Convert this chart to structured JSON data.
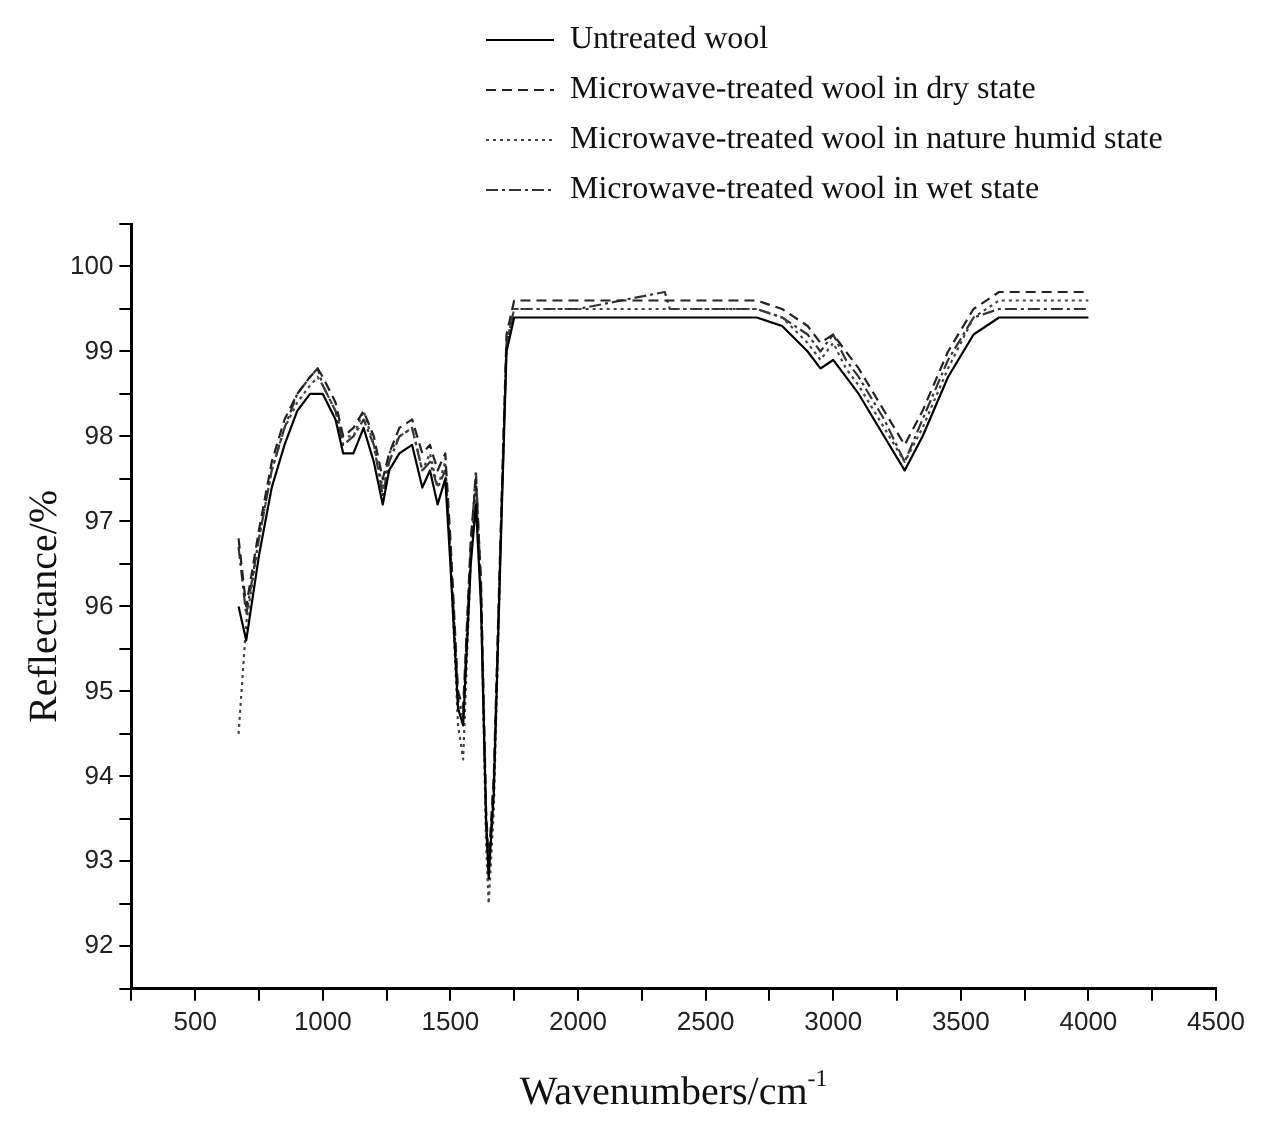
{
  "chart_data": {
    "type": "line",
    "xlabel": "Wavenumbers/cm$^{-1}$",
    "ylabel": "Reflectance/%",
    "x": [
      670,
      700,
      750,
      800,
      850,
      900,
      950,
      980,
      1000,
      1050,
      1080,
      1120,
      1160,
      1200,
      1235,
      1260,
      1300,
      1350,
      1390,
      1420,
      1450,
      1480,
      1500,
      1530,
      1550,
      1580,
      1600,
      1620,
      1640,
      1650,
      1670,
      1700,
      1720,
      1750,
      2000,
      2340,
      2360,
      2500,
      2700,
      2800,
      2900,
      2950,
      3000,
      3050,
      3100,
      3200,
      3280,
      3350,
      3450,
      3550,
      3650,
      4000
    ],
    "series": [
      {
        "name": "Untreated wool",
        "color": "#000000",
        "line_style": "solid",
        "values": [
          96.0,
          95.6,
          96.6,
          97.4,
          97.9,
          98.3,
          98.5,
          98.5,
          98.5,
          98.2,
          97.8,
          97.8,
          98.1,
          97.7,
          97.2,
          97.6,
          97.8,
          97.9,
          97.4,
          97.6,
          97.2,
          97.5,
          96.5,
          94.8,
          94.6,
          96.5,
          97.2,
          96.0,
          93.5,
          92.8,
          93.8,
          97.0,
          99.0,
          99.4,
          99.4,
          99.4,
          99.4,
          99.4,
          99.4,
          99.3,
          99.0,
          98.8,
          98.9,
          98.7,
          98.5,
          98.0,
          97.6,
          98.0,
          98.7,
          99.2,
          99.4,
          99.4
        ]
      },
      {
        "name": "Microwave-treated wool in dry state",
        "color": "#222222",
        "line_style": "dashed",
        "values": [
          96.8,
          96.0,
          96.9,
          97.7,
          98.2,
          98.5,
          98.7,
          98.8,
          98.7,
          98.4,
          98.0,
          98.1,
          98.3,
          98.0,
          97.5,
          97.8,
          98.1,
          98.2,
          97.8,
          97.9,
          97.6,
          97.8,
          96.8,
          95.0,
          94.8,
          96.8,
          97.5,
          96.3,
          93.6,
          93.0,
          94.0,
          97.2,
          99.2,
          99.6,
          99.6,
          99.6,
          99.6,
          99.6,
          99.6,
          99.5,
          99.3,
          99.1,
          99.2,
          99.0,
          98.8,
          98.3,
          97.9,
          98.3,
          99.0,
          99.5,
          99.7,
          99.7
        ]
      },
      {
        "name": "Microwave-treated wool in nature humid state",
        "color": "#444444",
        "line_style": "dotted",
        "values": [
          94.5,
          95.8,
          96.8,
          97.6,
          98.1,
          98.4,
          98.6,
          98.7,
          98.6,
          98.3,
          98.0,
          98.0,
          98.3,
          97.9,
          97.4,
          97.8,
          98.0,
          98.1,
          97.6,
          97.8,
          97.4,
          97.7,
          96.6,
          94.6,
          94.2,
          96.6,
          97.4,
          96.1,
          93.2,
          92.5,
          93.6,
          97.1,
          99.1,
          99.5,
          99.5,
          99.5,
          99.5,
          99.5,
          99.5,
          99.4,
          99.1,
          98.9,
          99.1,
          98.8,
          98.6,
          98.1,
          97.7,
          98.1,
          98.8,
          99.4,
          99.6,
          99.6
        ]
      },
      {
        "name": "Microwave-treated wool in wet state",
        "color": "#333333",
        "line_style": "dashdot",
        "values": [
          96.7,
          95.9,
          96.8,
          97.6,
          98.1,
          98.5,
          98.7,
          98.8,
          98.6,
          98.3,
          97.9,
          98.0,
          98.2,
          97.9,
          97.3,
          97.7,
          98.0,
          98.1,
          97.6,
          97.7,
          97.4,
          97.6,
          96.7,
          94.9,
          94.7,
          96.7,
          97.6,
          96.2,
          93.4,
          92.9,
          93.9,
          97.1,
          99.1,
          99.5,
          99.5,
          99.7,
          99.5,
          99.5,
          99.5,
          99.4,
          99.2,
          99.0,
          99.2,
          98.9,
          98.7,
          98.2,
          97.7,
          98.2,
          98.9,
          99.4,
          99.5,
          99.5
        ]
      }
    ],
    "xlim": [
      250,
      4500
    ],
    "xticks": [
      {
        "value": 250,
        "label": null
      },
      500,
      {
        "value": 750,
        "label": null
      },
      1000,
      {
        "value": 1250,
        "label": null
      },
      1500,
      {
        "value": 1750,
        "label": null
      },
      2000,
      {
        "value": 2250,
        "label": null
      },
      2500,
      {
        "value": 2750,
        "label": null
      },
      3000,
      {
        "value": 3250,
        "label": null
      },
      3500,
      {
        "value": 3750,
        "label": null
      },
      4000,
      {
        "value": 4250,
        "label": null
      },
      4500
    ],
    "ylim": [
      91.5,
      100.5
    ],
    "yticks": [
      {
        "value": 91.5,
        "label": null
      },
      92,
      {
        "value": 92.5,
        "label": null
      },
      93,
      {
        "value": 93.5,
        "label": null
      },
      94,
      {
        "value": 94.5,
        "label": null
      },
      95,
      {
        "value": 95.5,
        "label": null
      },
      96,
      {
        "value": 96.5,
        "label": null
      },
      97,
      {
        "value": 97.5,
        "label": null
      },
      98,
      {
        "value": 98.5,
        "label": null
      },
      99,
      {
        "value": 99.5,
        "label": null
      },
      100,
      {
        "value": 100.5,
        "label": null
      }
    ],
    "grid": false,
    "legend": "top",
    "marker": "none"
  }
}
